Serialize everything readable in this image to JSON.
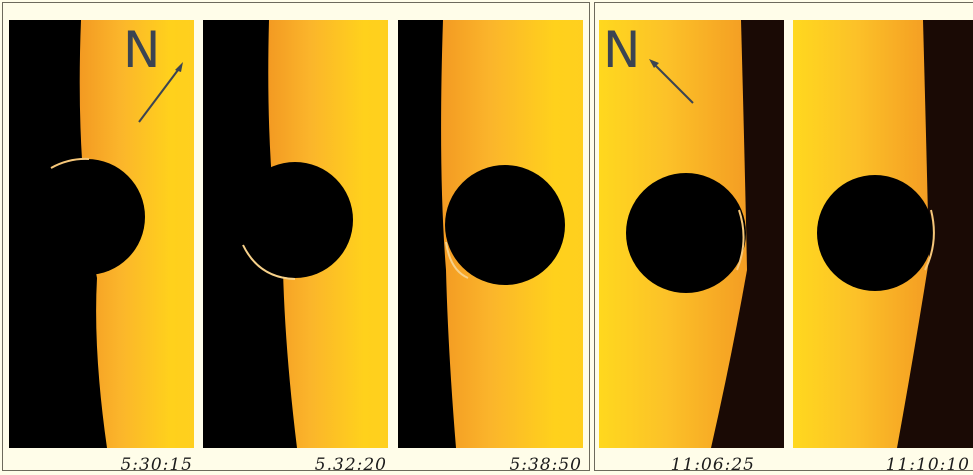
{
  "north_label": "N",
  "frames": [
    {
      "time": "5:30:15"
    },
    {
      "time": "5.32:20"
    },
    {
      "time": "5:38:50"
    },
    {
      "time": "11:06:25"
    },
    {
      "time": "11:10:10"
    }
  ],
  "colors": {
    "sun_light": "#ffd21a",
    "sun_mid": "#fbb12c",
    "sun_dark": "#e9961f",
    "background": "#fffde9",
    "disk": "#000000"
  }
}
